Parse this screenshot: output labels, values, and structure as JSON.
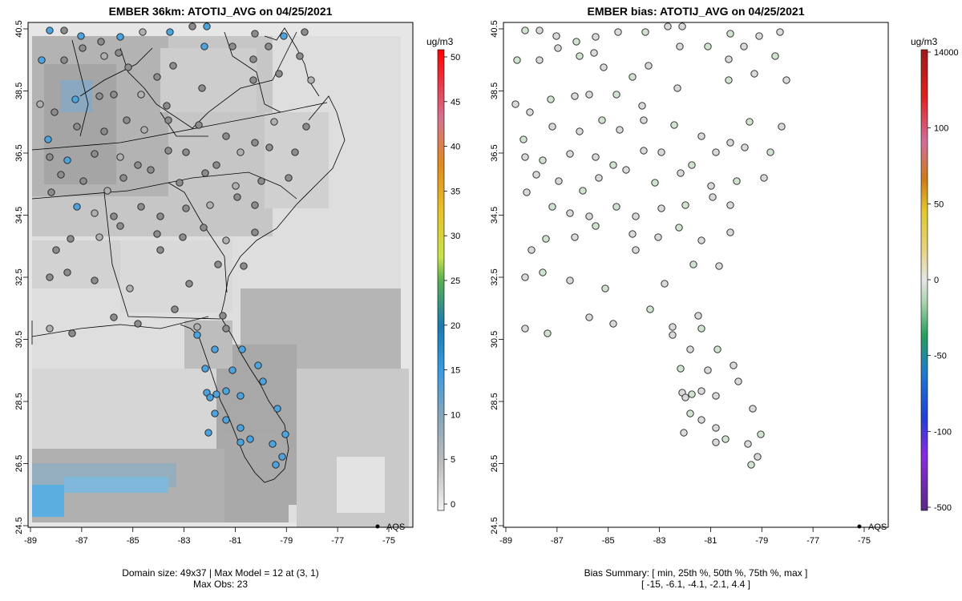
{
  "left": {
    "title": "EMBER 36km: ATOTIJ_AVG on 04/25/2021",
    "footer_line1": "Domain size: 49x37 | Max Model = 12 at (3, 1)",
    "footer_line2": "Max Obs: 23",
    "legend_label": "AQS",
    "colorbar_unit": "ug/m3",
    "colorbar_ticks": [
      "0",
      "5",
      "10",
      "15",
      "20",
      "25",
      "30",
      "35",
      "40",
      "45",
      "50"
    ]
  },
  "right": {
    "title": "EMBER bias: ATOTIJ_AVG on 04/25/2021",
    "footer_line1": "Bias Summary: [ min, 25th %, 50th %, 75th %, max ]",
    "footer_line2": "[ -15,  -6.1,  -4.1,  -2.1,  4.4 ]",
    "legend_label": "AQS",
    "colorbar_unit": "ug/m3",
    "colorbar_ticks": [
      "14000",
      "100",
      "50",
      "0",
      "-50",
      "-100",
      "-500"
    ]
  },
  "axes": {
    "x_ticks": [
      "-89",
      "-87",
      "-85",
      "-83",
      "-81",
      "-79",
      "-77",
      "-75"
    ],
    "y_ticks": [
      "24.5",
      "26.5",
      "28.5",
      "30.5",
      "32.5",
      "34.5",
      "36.5",
      "38.5",
      "40.5"
    ]
  },
  "colors": {
    "model_low": "#e3e3e3",
    "model_mid": "#c2c2c2",
    "model_dark": "#a8a8a8",
    "model_blue": "#5aaee0",
    "obs_blue": "#4ca3dd",
    "obs_gray": "#8c8c8c",
    "bias_green": "#cfe3cf",
    "bias_gray": "#d9d9d9"
  }
}
